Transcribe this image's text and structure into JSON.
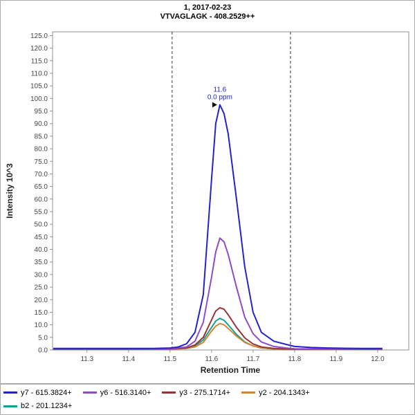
{
  "chart_data": {
    "type": "line",
    "title_line1": "1, 2017-02-23",
    "title_line2": "VTVAGLAGK - 408.2529++",
    "xlabel": "Retention Time",
    "ylabel": "Intensity 10^3",
    "xlim": [
      11.217,
      12.075
    ],
    "ylim": [
      0,
      126.5
    ],
    "x_ticks": [
      11.3,
      11.4,
      11.5,
      11.6,
      11.7,
      11.8,
      11.9,
      12.0
    ],
    "y_ticks": [
      0,
      5,
      10,
      15,
      20,
      25,
      30,
      35,
      40,
      45,
      50,
      55,
      60,
      65,
      70,
      75,
      80,
      85,
      90,
      95,
      100,
      105,
      110,
      115,
      120,
      125
    ],
    "boundaries": [
      11.505,
      11.79
    ],
    "annotation": {
      "rt_label": "11.6",
      "ppm_label": "0.0 ppm",
      "x": 11.62,
      "y": 97.5,
      "color": "#2222cc"
    },
    "legend_rows": [
      [
        0,
        1,
        2,
        3
      ],
      [
        4
      ]
    ],
    "series": [
      {
        "id": "y7",
        "name": "y7 - 615.3824+",
        "color": "#2222cc",
        "points": [
          [
            11.22,
            0.6
          ],
          [
            11.3,
            0.6
          ],
          [
            11.4,
            0.6
          ],
          [
            11.46,
            0.6
          ],
          [
            11.5,
            0.8
          ],
          [
            11.52,
            1.2
          ],
          [
            11.54,
            2.5
          ],
          [
            11.56,
            7
          ],
          [
            11.58,
            22
          ],
          [
            11.6,
            68
          ],
          [
            11.61,
            90
          ],
          [
            11.62,
            97.5
          ],
          [
            11.63,
            94
          ],
          [
            11.64,
            86
          ],
          [
            11.66,
            60
          ],
          [
            11.68,
            33
          ],
          [
            11.7,
            15
          ],
          [
            11.72,
            7
          ],
          [
            11.75,
            3.5
          ],
          [
            11.78,
            2.2
          ],
          [
            11.8,
            1.4
          ],
          [
            11.84,
            1.0
          ],
          [
            11.88,
            0.8
          ],
          [
            11.92,
            0.7
          ],
          [
            11.96,
            0.6
          ],
          [
            12.0,
            0.6
          ],
          [
            12.01,
            0.6
          ]
        ]
      },
      {
        "id": "y6",
        "name": "y6 - 516.3140+",
        "color": "#8c4bc8",
        "points": [
          [
            11.22,
            0.4
          ],
          [
            11.4,
            0.4
          ],
          [
            11.5,
            0.5
          ],
          [
            11.54,
            1.2
          ],
          [
            11.56,
            3.5
          ],
          [
            11.58,
            11
          ],
          [
            11.6,
            29
          ],
          [
            11.61,
            39
          ],
          [
            11.62,
            44.5
          ],
          [
            11.63,
            43
          ],
          [
            11.64,
            38
          ],
          [
            11.66,
            25
          ],
          [
            11.68,
            13
          ],
          [
            11.7,
            6.5
          ],
          [
            11.72,
            3.2
          ],
          [
            11.75,
            1.4
          ],
          [
            11.78,
            0.8
          ],
          [
            11.8,
            0.5
          ],
          [
            11.9,
            0.4
          ],
          [
            12.0,
            0.4
          ],
          [
            12.01,
            0.4
          ]
        ]
      },
      {
        "id": "y3",
        "name": "y3 - 275.1714+",
        "color": "#993333",
        "points": [
          [
            11.22,
            0.3
          ],
          [
            11.4,
            0.3
          ],
          [
            11.5,
            0.4
          ],
          [
            11.54,
            0.8
          ],
          [
            11.56,
            2
          ],
          [
            11.58,
            5
          ],
          [
            11.6,
            12
          ],
          [
            11.61,
            15.5
          ],
          [
            11.62,
            16.8
          ],
          [
            11.63,
            16.2
          ],
          [
            11.64,
            14
          ],
          [
            11.66,
            9
          ],
          [
            11.68,
            4.8
          ],
          [
            11.7,
            2.4
          ],
          [
            11.72,
            1.2
          ],
          [
            11.75,
            0.6
          ],
          [
            11.78,
            0.4
          ],
          [
            11.8,
            0.3
          ],
          [
            11.9,
            0.3
          ],
          [
            12.0,
            0.3
          ],
          [
            12.01,
            0.3
          ]
        ]
      },
      {
        "id": "y2",
        "name": "y2 - 204.1343+",
        "color": "#d08634",
        "points": [
          [
            11.22,
            0.3
          ],
          [
            11.4,
            0.3
          ],
          [
            11.5,
            0.3
          ],
          [
            11.54,
            0.6
          ],
          [
            11.56,
            1.2
          ],
          [
            11.58,
            3
          ],
          [
            11.6,
            7.5
          ],
          [
            11.61,
            9.5
          ],
          [
            11.62,
            10.5
          ],
          [
            11.63,
            10
          ],
          [
            11.64,
            8.6
          ],
          [
            11.66,
            5.5
          ],
          [
            11.68,
            3
          ],
          [
            11.7,
            1.6
          ],
          [
            11.72,
            0.8
          ],
          [
            11.75,
            0.4
          ],
          [
            11.78,
            0.3
          ],
          [
            11.9,
            0.3
          ],
          [
            12.0,
            0.3
          ],
          [
            12.01,
            0.3
          ]
        ]
      },
      {
        "id": "b2",
        "name": "b2 - 201.1234+",
        "color": "#169f91",
        "points": [
          [
            11.22,
            0.3
          ],
          [
            11.4,
            0.3
          ],
          [
            11.5,
            0.4
          ],
          [
            11.54,
            0.7
          ],
          [
            11.56,
            1.6
          ],
          [
            11.58,
            4
          ],
          [
            11.6,
            9
          ],
          [
            11.61,
            11.5
          ],
          [
            11.62,
            12.6
          ],
          [
            11.63,
            11.8
          ],
          [
            11.64,
            10
          ],
          [
            11.66,
            6.2
          ],
          [
            11.68,
            3.2
          ],
          [
            11.7,
            1.6
          ],
          [
            11.72,
            0.8
          ],
          [
            11.75,
            0.4
          ],
          [
            11.78,
            0.3
          ],
          [
            11.9,
            0.3
          ],
          [
            12.0,
            0.3
          ],
          [
            12.01,
            0.3
          ]
        ]
      }
    ]
  }
}
